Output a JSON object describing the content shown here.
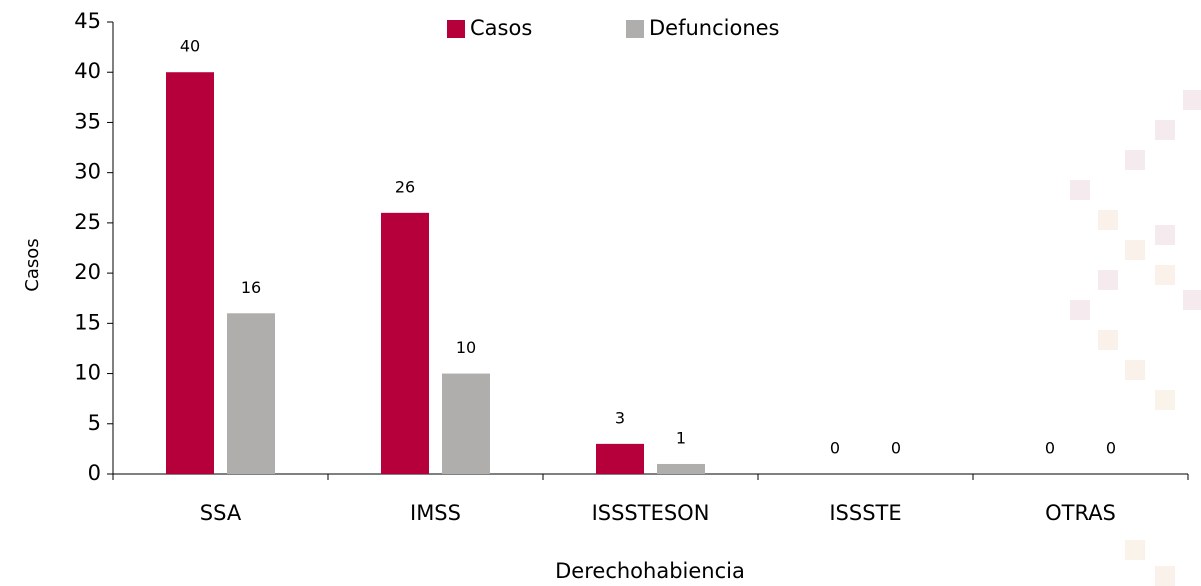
{
  "chart_data": {
    "type": "bar",
    "categories": [
      "SSA",
      "IMSS",
      "ISSSTESON",
      "ISSSTE",
      "OTRAS"
    ],
    "series": [
      {
        "name": "Casos",
        "color": "#b5003c",
        "values": [
          40,
          26,
          3,
          0,
          0
        ]
      },
      {
        "name": "Defunciones",
        "color": "#b0adad",
        "values": [
          16,
          10,
          1,
          0,
          0
        ]
      }
    ],
    "x_label": "Derechohabiencia",
    "y_label": "Casos",
    "ylim": [
      0,
      45
    ],
    "yticks": [
      0,
      5,
      10,
      15,
      20,
      25,
      30,
      35,
      40,
      45
    ],
    "grid": false,
    "legend": "top"
  }
}
